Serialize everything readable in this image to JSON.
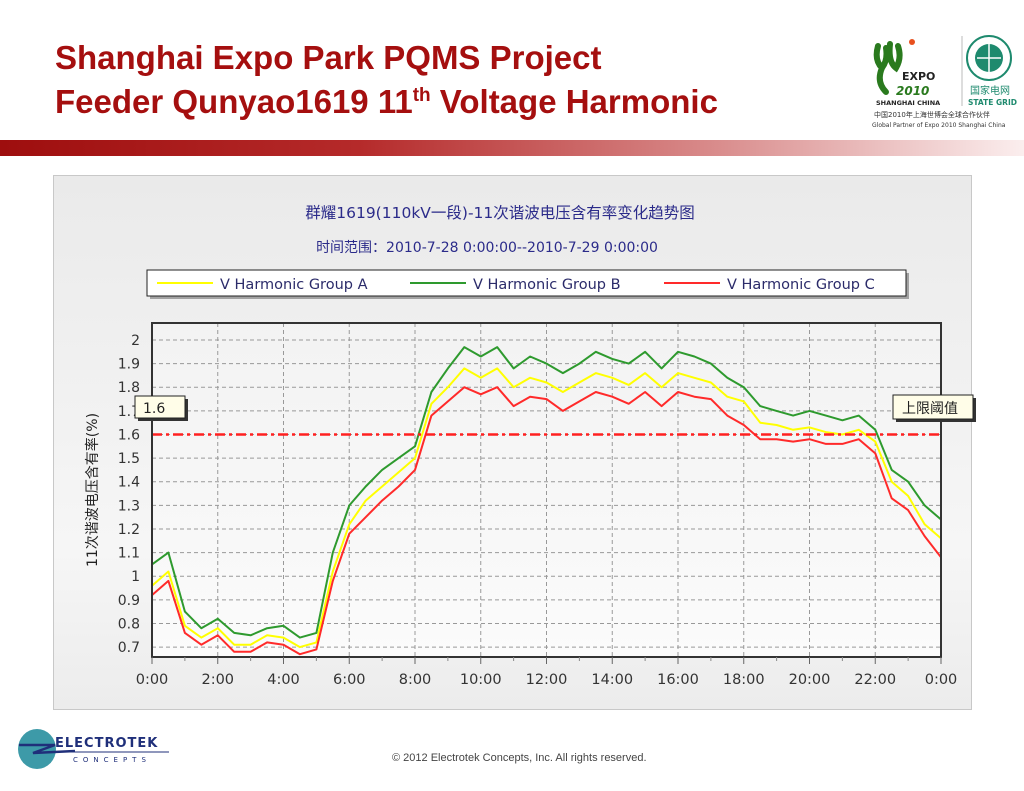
{
  "slide": {
    "title_line1": "Shanghai Expo Park PQMS Project",
    "title_line2_pre": "Feeder Qunyao1619 11",
    "title_line2_sup": "th",
    "title_line2_post": " Voltage Harmonic",
    "footer": "© 2012 Electrotek Concepts,  Inc. All rights reserved.",
    "logo_expo": {
      "text1": "EXPO",
      "text2": "2010",
      "text3": "SHANGHAI CHINA"
    },
    "logo_stategrid": {
      "cn": "国家电网",
      "en": "STATE GRID"
    },
    "partner_cn": "中国2010年上海世博会全球合作伙伴",
    "partner_en": "Global Partner of Expo 2010 Shanghai China",
    "electrotek": {
      "name": "ELECTROTEK",
      "sub": "CONCEPTS"
    }
  },
  "chart_data": {
    "type": "line",
    "title": "群耀1619(110kV一段)-11次谐波电压含有率变化趋势图",
    "subtitle": "时间范围：2010-7-28 0:00:00--2010-7-29 0:00:00",
    "ylabel": "11次谐波电压含有率(%)",
    "xlabel": "",
    "ylim": [
      0.658,
      2.072
    ],
    "xlim": [
      0,
      24
    ],
    "yticks": [
      "0.7",
      "0.8",
      "0.9",
      "1",
      "1.1",
      "1.2",
      "1.3",
      "1.4",
      "1.5",
      "1.6",
      "1.7",
      "1.8",
      "1.9",
      "2"
    ],
    "xticks": [
      "0:00",
      "2:00",
      "4:00",
      "6:00",
      "8:00",
      "10:00",
      "12:00",
      "14:00",
      "16:00",
      "18:00",
      "20:00",
      "22:00",
      "0:00"
    ],
    "grid": true,
    "legend_position": "top",
    "threshold": {
      "value": 1.6,
      "label": "上限阈值",
      "tooltip": "1.6",
      "color": "#ff2020"
    },
    "x_hours": [
      0,
      0.5,
      1,
      1.5,
      2,
      2.5,
      3,
      3.5,
      4,
      4.5,
      5,
      5.5,
      6,
      6.5,
      7,
      7.5,
      8,
      8.5,
      9,
      9.5,
      10,
      10.5,
      11,
      11.5,
      12,
      12.5,
      13,
      13.5,
      14,
      14.5,
      15,
      15.5,
      16,
      16.5,
      17,
      17.5,
      18,
      18.5,
      19,
      19.5,
      20,
      20.5,
      21,
      21.5,
      22,
      22.5,
      23,
      23.5,
      24
    ],
    "series": [
      {
        "name": "V Harmonic Group A",
        "color": "#ffff00",
        "values": [
          0.96,
          1.02,
          0.79,
          0.74,
          0.78,
          0.71,
          0.71,
          0.75,
          0.74,
          0.7,
          0.72,
          1.02,
          1.22,
          1.32,
          1.38,
          1.44,
          1.5,
          1.73,
          1.8,
          1.88,
          1.84,
          1.88,
          1.8,
          1.84,
          1.82,
          1.78,
          1.82,
          1.86,
          1.84,
          1.81,
          1.86,
          1.8,
          1.86,
          1.84,
          1.82,
          1.76,
          1.74,
          1.65,
          1.64,
          1.62,
          1.63,
          1.61,
          1.6,
          1.62,
          1.57,
          1.4,
          1.34,
          1.22,
          1.16
        ]
      },
      {
        "name": "V Harmonic Group B",
        "color": "#2e9a2e",
        "values": [
          1.05,
          1.1,
          0.85,
          0.78,
          0.82,
          0.76,
          0.75,
          0.78,
          0.79,
          0.74,
          0.76,
          1.1,
          1.3,
          1.38,
          1.45,
          1.5,
          1.55,
          1.78,
          1.88,
          1.97,
          1.93,
          1.97,
          1.88,
          1.93,
          1.9,
          1.86,
          1.9,
          1.95,
          1.92,
          1.9,
          1.95,
          1.88,
          1.95,
          1.93,
          1.9,
          1.84,
          1.8,
          1.72,
          1.7,
          1.68,
          1.7,
          1.68,
          1.66,
          1.68,
          1.62,
          1.45,
          1.4,
          1.3,
          1.24
        ]
      },
      {
        "name": "V Harmonic Group C",
        "color": "#ff2a2a",
        "values": [
          0.92,
          0.98,
          0.76,
          0.71,
          0.75,
          0.68,
          0.68,
          0.72,
          0.71,
          0.67,
          0.69,
          0.98,
          1.18,
          1.25,
          1.32,
          1.38,
          1.45,
          1.68,
          1.74,
          1.8,
          1.77,
          1.8,
          1.72,
          1.76,
          1.75,
          1.7,
          1.74,
          1.78,
          1.76,
          1.73,
          1.78,
          1.72,
          1.78,
          1.76,
          1.75,
          1.68,
          1.64,
          1.58,
          1.58,
          1.57,
          1.58,
          1.56,
          1.56,
          1.58,
          1.52,
          1.33,
          1.28,
          1.17,
          1.08
        ]
      }
    ]
  }
}
